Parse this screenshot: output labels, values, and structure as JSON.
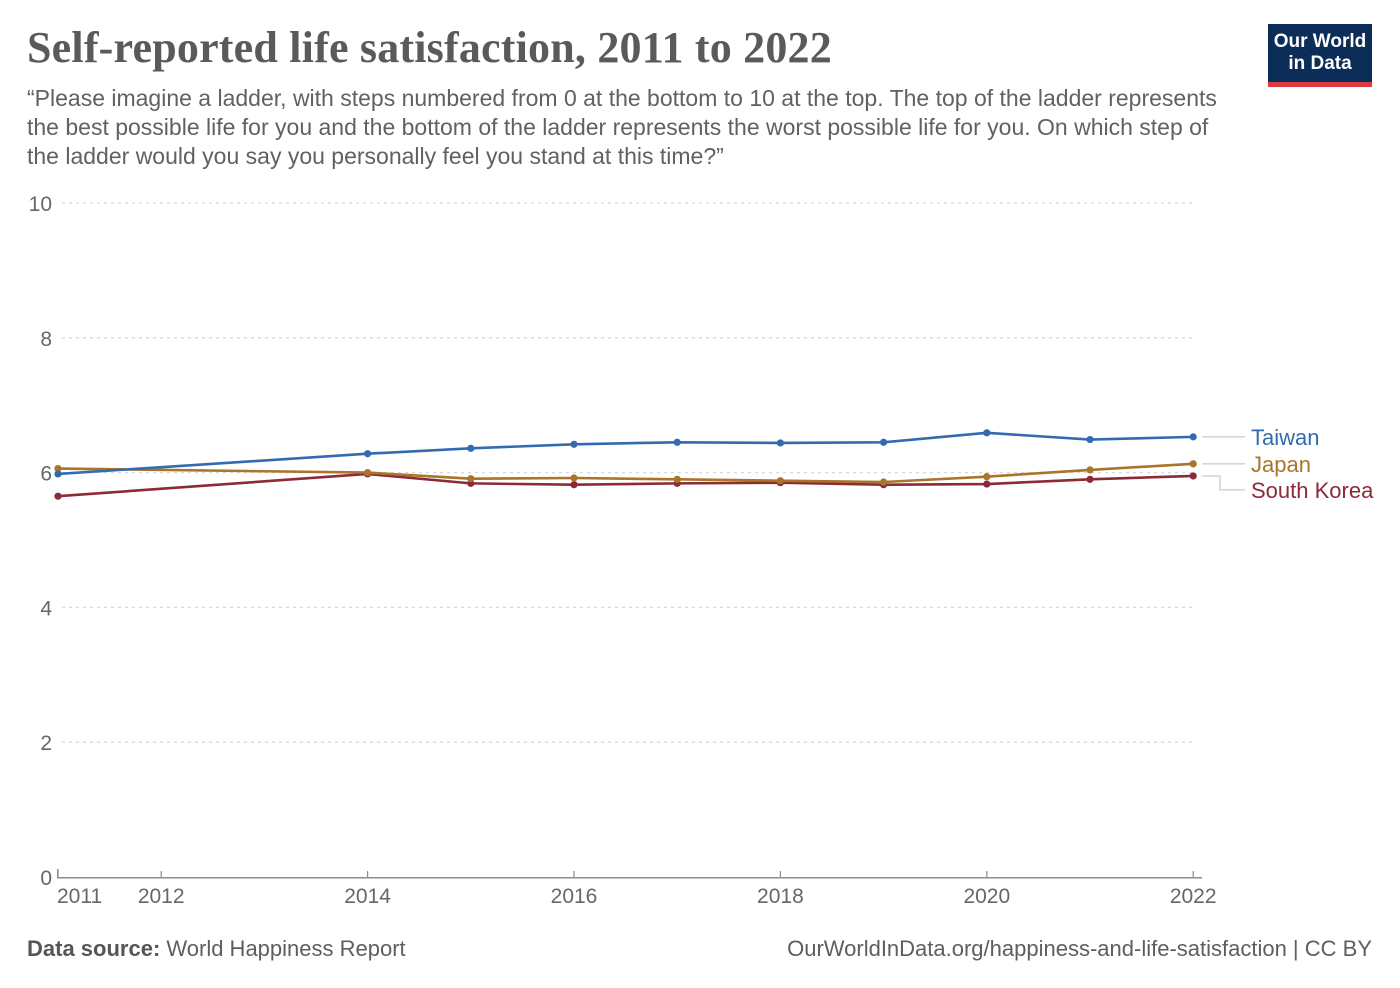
{
  "header": {
    "title": "Self-reported life satisfaction, 2011 to 2022",
    "subtitle": "“Please imagine a ladder, with steps numbered from 0 at the bottom to 10 at the top. The top of the ladder represents the best possible life for you and the bottom of the ladder represents the worst possible life for you. On which step of the ladder would you say you personally feel you stand at this time?”"
  },
  "logo": {
    "line1": "Our World",
    "line2": "in Data",
    "bg_color": "#0c2d57",
    "stripe_color": "#dc3c41"
  },
  "chart_data": {
    "type": "line",
    "title": "Self-reported life satisfaction, 2011 to 2022",
    "x": [
      2011,
      2014,
      2015,
      2016,
      2017,
      2018,
      2019,
      2020,
      2021,
      2022
    ],
    "series": [
      {
        "name": "South Korea",
        "color": "#8c2a38",
        "values": [
          5.65,
          5.98,
          5.84,
          5.82,
          5.84,
          5.85,
          5.82,
          5.83,
          5.9,
          5.95
        ]
      },
      {
        "name": "Japan",
        "color": "#a8752b",
        "values": [
          6.06,
          6.0,
          5.91,
          5.92,
          5.9,
          5.88,
          5.86,
          5.94,
          6.04,
          6.13
        ]
      },
      {
        "name": "Taiwan",
        "color": "#336bae",
        "values": [
          5.98,
          6.28,
          6.36,
          6.42,
          6.45,
          6.44,
          6.45,
          6.59,
          6.49,
          6.53
        ]
      }
    ],
    "ylim": [
      0,
      10
    ],
    "yticks": [
      0,
      2,
      4,
      6,
      8,
      10
    ],
    "xticks": [
      2011,
      2012,
      2014,
      2016,
      2018,
      2020,
      2022
    ],
    "grid": "horizontal-dashed",
    "legend_position": "right-inline-labels",
    "grid_color": "#d9d9d9",
    "axis_color": "#8c8c8c",
    "connector_color": "#bdbdbd"
  },
  "footer": {
    "source_label": "Data source:",
    "source_value": " World Happiness Report",
    "link": "OurWorldInData.org/happiness-and-life-satisfaction | CC BY"
  }
}
